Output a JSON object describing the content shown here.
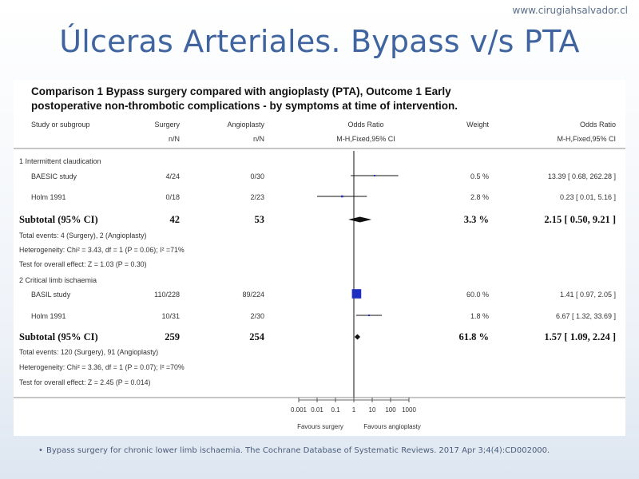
{
  "site_url": "www.cirugiahsalvador.cl",
  "slide_title": "Úlceras Arteriales. Bypass v/s PTA",
  "footnote": "Bypass surgery for chronic lower limb ischaemia. The Cochrane Database of Systematic Reviews. 2017 Apr 3;4(4):CD002000.",
  "colors": {
    "title": "#3f64a0",
    "marker": "#1f2fbf",
    "ink": "#111111"
  },
  "chart_data": {
    "type": "forest",
    "caption_line1": "Comparison 1 Bypass surgery compared with angioplasty (PTA), Outcome 1 Early",
    "caption_line2": "postoperative non-thrombotic complications - by symptoms at time of intervention.",
    "headers": {
      "study": "Study or subgroup",
      "surgery": "Surgery",
      "surgery_sub": "n/N",
      "angio": "Angioplasty",
      "angio_sub": "n/N",
      "or": "Odds Ratio",
      "or_sub": "M-H,Fixed,95% CI",
      "weight": "Weight",
      "or2": "Odds Ratio",
      "or2_sub": "M-H,Fixed,95% CI"
    },
    "axis": {
      "scale": "log",
      "ticks": [
        0.001,
        0.01,
        0.1,
        1,
        10,
        100,
        1000
      ],
      "tick_labels": [
        "0.001",
        "0.01",
        "0.1",
        "1",
        "10",
        "100",
        "1000"
      ],
      "left_label": "Favours surgery",
      "right_label": "Favours angioplasty"
    },
    "groups": [
      {
        "label": "1 Intermittent claudication",
        "studies": [
          {
            "name": "BAESIC study",
            "surgery": "4/24",
            "angio": "0/30",
            "weight": "0.5 %",
            "or_text": "13.39 [ 0.68, 262.28 ]",
            "or": 13.39,
            "lo": 0.68,
            "hi": 262.28,
            "w": 0.5
          },
          {
            "name": "Holm 1991",
            "surgery": "0/18",
            "angio": "2/23",
            "weight": "2.8 %",
            "or_text": "0.23 [ 0.01, 5.16 ]",
            "or": 0.23,
            "lo": 0.01,
            "hi": 5.16,
            "w": 2.8
          }
        ],
        "subtotal": {
          "label": "Subtotal (95% CI)",
          "surgery": "42",
          "angio": "53",
          "weight": "3.3 %",
          "or_text": "2.15 [ 0.50, 9.21 ]",
          "or": 2.15,
          "lo": 0.5,
          "hi": 9.21
        },
        "notes": [
          "Total events: 4 (Surgery), 2 (Angioplasty)",
          "Heterogeneity: Chi² = 3.43, df = 1 (P = 0.06); I² =71%",
          "Test for overall effect: Z = 1.03 (P = 0.30)"
        ]
      },
      {
        "label": "2 Critical limb ischaemia",
        "studies": [
          {
            "name": "BASIL study",
            "surgery": "110/228",
            "angio": "89/224",
            "weight": "60.0 %",
            "or_text": "1.41 [ 0.97, 2.05 ]",
            "or": 1.41,
            "lo": 0.97,
            "hi": 2.05,
            "w": 60.0
          },
          {
            "name": "Holm 1991",
            "surgery": "10/31",
            "angio": "2/30",
            "weight": "1.8 %",
            "or_text": "6.67 [ 1.32, 33.69 ]",
            "or": 6.67,
            "lo": 1.32,
            "hi": 33.69,
            "w": 1.8
          }
        ],
        "subtotal": {
          "label": "Subtotal (95% CI)",
          "surgery": "259",
          "angio": "254",
          "weight": "61.8 %",
          "or_text": "1.57 [ 1.09, 2.24 ]",
          "or": 1.57,
          "lo": 1.09,
          "hi": 2.24
        },
        "notes": [
          "Total events: 120 (Surgery), 91 (Angioplasty)",
          "Heterogeneity: Chi² = 3.36, df = 1 (P = 0.07); I² =70%",
          "Test for overall effect: Z = 2.45 (P = 0.014)"
        ]
      }
    ]
  }
}
